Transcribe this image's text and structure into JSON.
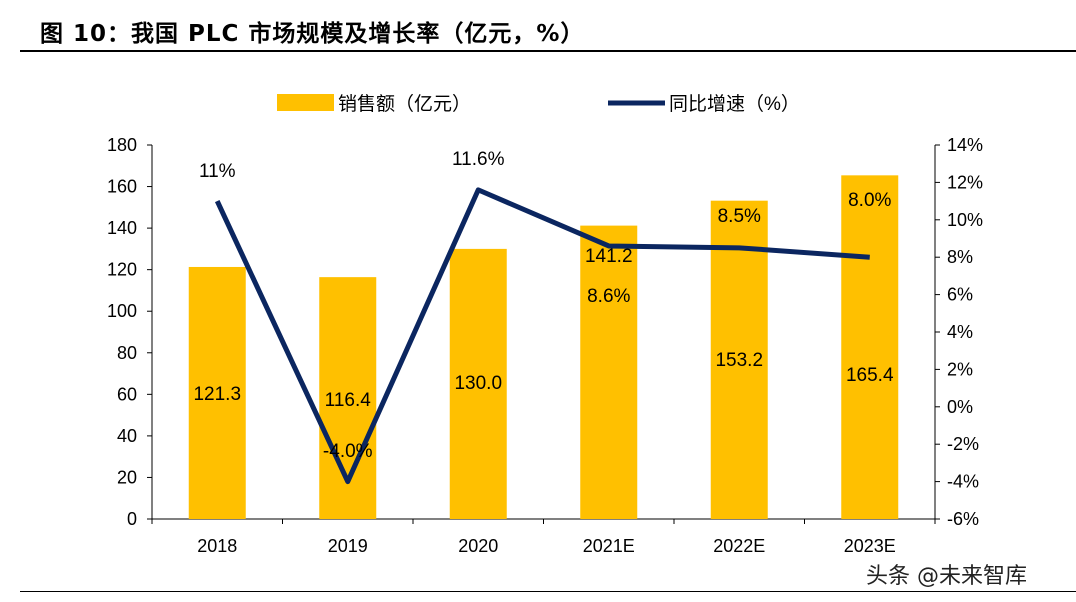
{
  "title": "图 10：我国 PLC 市场规模及增长率（亿元，%）",
  "watermark": "头条 @未来智库",
  "colors": {
    "bar": "#FFC000",
    "line": "#0B2660"
  },
  "chart_data": {
    "type": "bar+line",
    "categories": [
      "2018",
      "2019",
      "2020",
      "2021E",
      "2022E",
      "2023E"
    ],
    "series": [
      {
        "name": "销售额（亿元）",
        "type": "bar",
        "axis": "left",
        "values": [
          121.3,
          116.4,
          130.0,
          141.2,
          153.2,
          165.4
        ],
        "labels": [
          "121.3",
          "116.4",
          "130.0",
          "141.2",
          "153.2",
          "165.4"
        ]
      },
      {
        "name": "同比增速（%）",
        "type": "line",
        "axis": "right",
        "values": [
          11.0,
          -4.0,
          11.6,
          8.6,
          8.5,
          8.0
        ],
        "labels": [
          "11%",
          "-4.0%",
          "11.6%",
          "8.6%",
          "8.5%",
          "8.0%"
        ]
      }
    ],
    "y_left": {
      "range": [
        0,
        180
      ],
      "ticks": [
        "0",
        "20",
        "40",
        "60",
        "80",
        "100",
        "120",
        "140",
        "160",
        "180"
      ]
    },
    "y_right": {
      "range": [
        -6,
        14
      ],
      "ticks": [
        "-6%",
        "-4%",
        "-2%",
        "0%",
        "2%",
        "4%",
        "6%",
        "8%",
        "10%",
        "12%",
        "14%"
      ]
    },
    "legend": {
      "placement": "top",
      "entries": [
        "销售额（亿元）",
        "同比增速（%）"
      ]
    },
    "grid": false
  }
}
